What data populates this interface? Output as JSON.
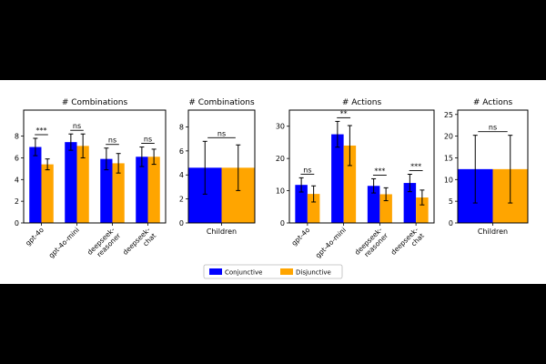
{
  "chart_data": [
    {
      "type": "bar",
      "title": "# Combinations",
      "categories": [
        "gpt-4o",
        "gpt-4o-mini",
        "deepseek-\nreasoner",
        "deepseek-\nchat"
      ],
      "series": [
        {
          "name": "Conjunctive",
          "values": [
            7.0,
            7.45,
            5.9,
            6.1
          ],
          "err": [
            0.8,
            0.75,
            1.0,
            0.9
          ]
        },
        {
          "name": "Disjunctive",
          "values": [
            5.4,
            7.1,
            5.5,
            6.1
          ],
          "err": [
            0.5,
            1.1,
            0.9,
            0.7
          ]
        }
      ],
      "significance": [
        "***",
        "ns",
        "ns",
        "ns"
      ],
      "ylim": [
        0,
        10.4
      ],
      "yticks": [
        0,
        2,
        4,
        6,
        8
      ],
      "rotate_labels": true
    },
    {
      "type": "bar",
      "title": "# Combinations",
      "categories": [
        "Children"
      ],
      "series": [
        {
          "name": "Conjunctive",
          "values": [
            4.6
          ],
          "err": [
            2.2
          ]
        },
        {
          "name": "Disjunctive",
          "values": [
            4.6
          ],
          "err": [
            1.9
          ]
        }
      ],
      "significance": [
        "ns"
      ],
      "ylim": [
        0,
        9.4
      ],
      "yticks": [
        0,
        2,
        4,
        6,
        8
      ],
      "rotate_labels": false
    },
    {
      "type": "bar",
      "title": "# Actions",
      "categories": [
        "gpt-4o",
        "gpt-4o-mini",
        "deepseek-\nreasoner",
        "deepseek-\nchat"
      ],
      "series": [
        {
          "name": "Conjunctive",
          "values": [
            11.8,
            27.5,
            11.5,
            12.4
          ],
          "err": [
            2.2,
            4.0,
            2.2,
            2.7
          ]
        },
        {
          "name": "Disjunctive",
          "values": [
            9.0,
            24.0,
            8.9,
            7.9
          ],
          "err": [
            2.5,
            6.2,
            2.0,
            2.3
          ]
        }
      ],
      "significance": [
        "ns",
        "**",
        "***",
        "***"
      ],
      "ylim": [
        0,
        35
      ],
      "yticks": [
        0,
        10,
        20,
        30
      ],
      "rotate_labels": true
    },
    {
      "type": "bar",
      "title": "# Actions",
      "categories": [
        "Children"
      ],
      "series": [
        {
          "name": "Conjunctive",
          "values": [
            12.4
          ],
          "err": [
            7.8
          ]
        },
        {
          "name": "Disjunctive",
          "values": [
            12.4
          ],
          "err": [
            7.8
          ]
        }
      ],
      "significance": [
        "ns"
      ],
      "ylim": [
        0,
        26
      ],
      "yticks": [
        0,
        5,
        10,
        15,
        20,
        25
      ],
      "rotate_labels": false
    }
  ],
  "legend": {
    "placement": "bottom-center",
    "items": [
      {
        "label": "Conjunctive",
        "color": "#0000ff"
      },
      {
        "label": "Disjunctive",
        "color": "#ffa500"
      }
    ]
  }
}
